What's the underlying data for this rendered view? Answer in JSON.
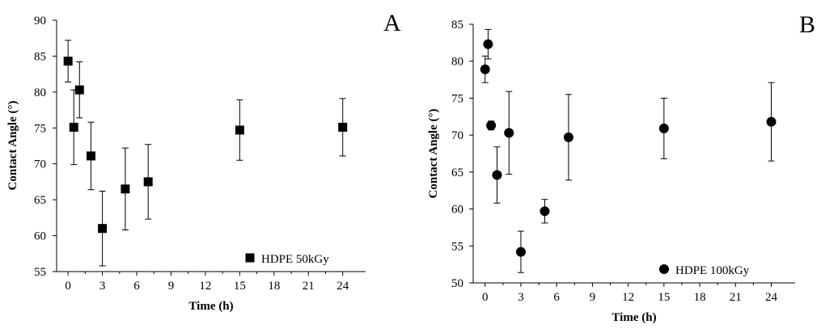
{
  "chart_data": [
    {
      "type": "scatter",
      "panel_label": "A",
      "xlabel": "Time (h)",
      "ylabel": "Contact Angle (°)",
      "xlim": [
        -1,
        26
      ],
      "ylim": [
        55,
        90
      ],
      "xticks": [
        0,
        3,
        6,
        9,
        12,
        15,
        18,
        21,
        24
      ],
      "yticks": [
        55,
        60,
        65,
        70,
        75,
        80,
        85,
        90
      ],
      "grid": false,
      "legend_position": "bottom-right",
      "marker": "square",
      "series": [
        {
          "name": "HDPE 50kGy",
          "points": [
            {
              "x": 0,
              "y": 84.3,
              "err": 2.9
            },
            {
              "x": 0.5,
              "y": 75.1,
              "err": 5.2
            },
            {
              "x": 1,
              "y": 80.3,
              "err": 3.9
            },
            {
              "x": 2,
              "y": 71.1,
              "err": 4.7
            },
            {
              "x": 3,
              "y": 61.0,
              "err": 5.2
            },
            {
              "x": 5,
              "y": 66.5,
              "err": 5.7
            },
            {
              "x": 7,
              "y": 67.5,
              "err": 5.2
            },
            {
              "x": 15,
              "y": 74.7,
              "err": 4.2
            },
            {
              "x": 24,
              "y": 75.1,
              "err": 4.0
            }
          ]
        }
      ]
    },
    {
      "type": "scatter",
      "panel_label": "B",
      "xlabel": "Time (h)",
      "ylabel": "Contact Angle (°)",
      "xlim": [
        -1,
        26
      ],
      "ylim": [
        50,
        85
      ],
      "xticks": [
        0,
        3,
        6,
        9,
        12,
        15,
        18,
        21,
        24
      ],
      "yticks": [
        50,
        55,
        60,
        65,
        70,
        75,
        80,
        85
      ],
      "grid": false,
      "legend_position": "bottom-right",
      "marker": "circle",
      "series": [
        {
          "name": "HDPE 100kGy",
          "points": [
            {
              "x": 0,
              "y": 78.9,
              "err": 1.8
            },
            {
              "x": 0.25,
              "y": 82.3,
              "err": 2.0
            },
            {
              "x": 0.5,
              "y": 71.3,
              "err": 0.6
            },
            {
              "x": 1,
              "y": 64.6,
              "err": 3.8
            },
            {
              "x": 2,
              "y": 70.3,
              "err": 5.6
            },
            {
              "x": 3,
              "y": 54.2,
              "err": 2.8
            },
            {
              "x": 5,
              "y": 59.7,
              "err": 1.6
            },
            {
              "x": 7,
              "y": 69.7,
              "err": 5.8
            },
            {
              "x": 15,
              "y": 70.9,
              "err": 4.1
            },
            {
              "x": 24,
              "y": 71.8,
              "err": 5.3
            }
          ]
        }
      ]
    }
  ]
}
